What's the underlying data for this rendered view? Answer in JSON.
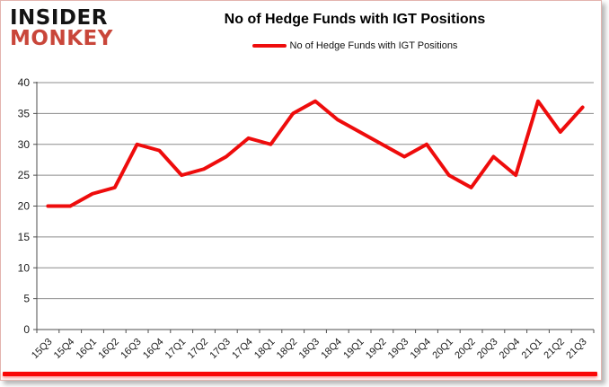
{
  "card": {
    "logo": {
      "line1": "INSIDER",
      "line2": "MONKEY",
      "line1_color": "#141414",
      "line2_color": "#c9463a"
    },
    "title": "No of Hedge Funds with IGT Positions",
    "legend": {
      "label": "No of Hedge Funds with IGT Positions",
      "swatch_color": "#ee0c0c"
    }
  },
  "colors": {
    "line": "#ee0c0c",
    "grid": "#8c8c8c",
    "axis": "#4d4d4d",
    "tick_text": "#1a1a1a",
    "accent_bar": "#f90606",
    "card_border": "#e3b4ae"
  },
  "chart_data": {
    "type": "line",
    "title": "No of Hedge Funds with IGT Positions",
    "categories": [
      "15Q3",
      "15Q4",
      "16Q1",
      "16Q2",
      "16Q3",
      "16Q4",
      "17Q1",
      "17Q2",
      "17Q3",
      "17Q4",
      "18Q1",
      "18Q2",
      "18Q3",
      "18Q4",
      "19Q1",
      "19Q2",
      "19Q3",
      "19Q4",
      "20Q1",
      "20Q2",
      "20Q3",
      "20Q4",
      "21Q1",
      "21Q2",
      "21Q3"
    ],
    "series": [
      {
        "name": "No of Hedge Funds with IGT Positions",
        "color": "#ee0c0c",
        "values": [
          20,
          20,
          22,
          23,
          30,
          29,
          25,
          26,
          28,
          31,
          30,
          35,
          37,
          34,
          32,
          30,
          28,
          30,
          25,
          23,
          28,
          25,
          37,
          32,
          36
        ]
      }
    ],
    "xlabel": "",
    "ylabel": "",
    "ylim": [
      0,
      40
    ],
    "y_ticks": [
      0,
      5,
      10,
      15,
      20,
      25,
      30,
      35,
      40
    ],
    "grid": "horizontal-only",
    "legend_position": "top-center"
  }
}
